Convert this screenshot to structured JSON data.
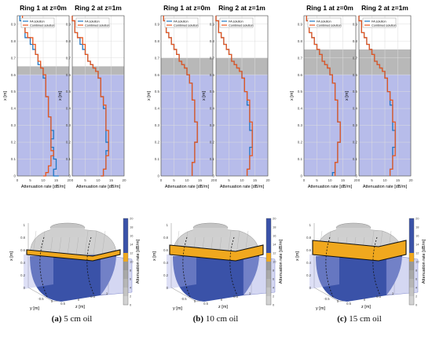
{
  "legend_entries": [
    "FA solution",
    "Combined solution"
  ],
  "y_axis_label": "x [m]",
  "x_axis_label": "Attenuation rate [dB/m]",
  "x_ticks": [
    "0",
    "5",
    "10",
    "15",
    "20"
  ],
  "y_ticks": [
    "0",
    "0.1",
    "0.2",
    "0.3",
    "0.4",
    "0.5",
    "0.6",
    "0.7",
    "0.8",
    "0.9"
  ],
  "colorbar_label": "Attenuation rate [dB/m]",
  "colorbar_ticks": [
    "0",
    "2",
    "4",
    "6",
    "8",
    "10",
    "12",
    "14",
    "16",
    "18",
    "20"
  ],
  "tank_axes": {
    "x_label": "x [m]",
    "y_label": "y [m]",
    "z_label": "z [m]",
    "x_ticks": [
      "0",
      "0.2",
      "0.4",
      "0.6",
      "0.8",
      "1"
    ],
    "y_ticks": [
      "-0.5",
      "0",
      "0.5"
    ],
    "z_ticks": [
      "0",
      "0.5",
      "1"
    ]
  },
  "colors": {
    "fa": "#1f77c4",
    "combined": "#e8571f",
    "water": "#aab0e6",
    "oil": "#b8b8b8",
    "tank_blue": "#3a52a8",
    "tank_oil": "#f0a81e"
  },
  "captions": [
    {
      "label": "(a)",
      "text": "5 cm oil"
    },
    {
      "label": "(b)",
      "text": "10 cm oil"
    },
    {
      "label": "(c)",
      "text": "15 cm oil"
    }
  ],
  "chart_data": [
    {
      "type": "line",
      "title": "Ring 1 at z=0m",
      "oil_cm": 5,
      "water_level": 0.6,
      "oil_top": 0.65,
      "xlim": [
        0,
        20
      ],
      "ylim": [
        0,
        0.95
      ],
      "series": [
        {
          "name": "FA solution",
          "x": [
            1,
            3,
            3,
            5,
            6,
            7,
            8,
            8,
            9,
            10,
            10,
            10,
            11,
            11,
            11,
            12,
            12,
            12,
            12,
            12,
            13,
            13,
            13,
            14,
            14,
            13,
            13,
            14,
            14,
            14,
            15,
            15,
            15,
            14,
            14,
            16
          ],
          "y": [
            0.95,
            0.92,
            0.85,
            0.82,
            0.78,
            0.75,
            0.72,
            0.68,
            0.66,
            0.64,
            0.62,
            0.6,
            0.58,
            0.55,
            0.5,
            0.47,
            0.45,
            0.42,
            0.4,
            0.37,
            0.35,
            0.32,
            0.3,
            0.27,
            0.25,
            0.22,
            0.2,
            0.17,
            0.15,
            0.12,
            0.1,
            0.08,
            0.06,
            0.04,
            0.02,
            0.0
          ]
        },
        {
          "name": "Combined solution",
          "x": [
            2,
            3,
            4,
            6,
            7,
            7,
            8,
            9,
            9,
            10,
            10,
            11,
            11,
            11,
            11,
            12,
            12,
            12,
            12,
            12,
            13,
            13,
            13,
            13,
            13,
            13,
            13,
            13,
            14,
            13,
            13,
            13,
            12,
            12,
            11,
            10
          ],
          "y": [
            0.95,
            0.92,
            0.85,
            0.82,
            0.78,
            0.75,
            0.72,
            0.68,
            0.66,
            0.64,
            0.62,
            0.6,
            0.58,
            0.55,
            0.5,
            0.47,
            0.45,
            0.42,
            0.4,
            0.37,
            0.35,
            0.32,
            0.3,
            0.27,
            0.25,
            0.22,
            0.2,
            0.17,
            0.15,
            0.12,
            0.1,
            0.08,
            0.06,
            0.04,
            0.02,
            0.0
          ]
        }
      ]
    },
    {
      "type": "line",
      "title": "Ring 2 at z=1m",
      "oil_cm": 5,
      "water_level": 0.6,
      "oil_top": 0.65,
      "xlim": [
        0,
        20
      ],
      "ylim": [
        0,
        0.95
      ],
      "series": [
        {
          "name": "FA solution",
          "x": [
            0,
            1,
            2,
            3,
            4,
            5,
            6,
            7,
            8,
            9,
            10,
            10,
            11,
            11,
            11,
            12,
            12,
            12,
            13,
            13,
            13,
            13,
            13,
            13,
            13,
            13,
            14,
            14,
            13,
            13,
            13,
            13,
            13,
            12,
            12,
            11
          ],
          "y": [
            0.95,
            0.92,
            0.85,
            0.82,
            0.78,
            0.75,
            0.72,
            0.68,
            0.66,
            0.64,
            0.62,
            0.6,
            0.58,
            0.55,
            0.5,
            0.47,
            0.45,
            0.42,
            0.4,
            0.37,
            0.35,
            0.32,
            0.3,
            0.27,
            0.25,
            0.22,
            0.2,
            0.17,
            0.15,
            0.12,
            0.1,
            0.08,
            0.06,
            0.04,
            0.02,
            0.0
          ]
        },
        {
          "name": "Combined solution",
          "x": [
            0,
            1,
            2,
            4,
            5,
            5,
            6,
            7,
            8,
            9,
            10,
            10,
            11,
            11,
            11,
            12,
            12,
            13,
            13,
            13,
            13,
            13,
            13,
            14,
            14,
            14,
            14,
            14,
            14,
            13,
            13,
            13,
            13,
            12,
            12,
            11
          ],
          "y": [
            0.95,
            0.92,
            0.85,
            0.82,
            0.78,
            0.75,
            0.72,
            0.68,
            0.66,
            0.64,
            0.62,
            0.6,
            0.58,
            0.55,
            0.5,
            0.47,
            0.45,
            0.42,
            0.4,
            0.37,
            0.35,
            0.32,
            0.3,
            0.27,
            0.25,
            0.22,
            0.2,
            0.17,
            0.15,
            0.12,
            0.1,
            0.08,
            0.06,
            0.04,
            0.02,
            0.0
          ]
        }
      ]
    },
    {
      "type": "line",
      "title": "Ring 1 at z=0m",
      "oil_cm": 10,
      "water_level": 0.6,
      "oil_top": 0.7,
      "xlim": [
        0,
        20
      ],
      "ylim": [
        0,
        0.95
      ],
      "series": [
        {
          "name": "FA solution",
          "x": [
            1,
            2,
            3,
            4,
            5,
            6,
            7,
            8,
            9,
            10,
            10,
            11,
            11,
            12,
            12,
            12,
            13,
            13,
            13,
            13,
            13,
            14,
            14,
            14,
            14,
            14,
            13,
            13,
            13,
            13,
            13,
            12,
            12,
            12,
            12,
            12
          ],
          "y": [
            0.95,
            0.92,
            0.85,
            0.82,
            0.78,
            0.75,
            0.72,
            0.68,
            0.66,
            0.64,
            0.62,
            0.6,
            0.58,
            0.55,
            0.5,
            0.47,
            0.45,
            0.42,
            0.4,
            0.37,
            0.35,
            0.32,
            0.3,
            0.27,
            0.25,
            0.22,
            0.2,
            0.17,
            0.15,
            0.12,
            0.1,
            0.08,
            0.06,
            0.04,
            0.02,
            0.0
          ]
        },
        {
          "name": "Combined solution",
          "x": [
            1,
            2,
            3,
            4,
            5,
            6,
            7,
            8,
            9,
            10,
            10,
            11,
            11,
            12,
            12,
            12,
            13,
            13,
            13,
            13,
            13,
            14,
            14,
            14,
            14,
            14,
            13,
            13,
            13,
            13,
            13,
            12,
            12,
            12,
            12,
            12
          ],
          "y": [
            0.95,
            0.92,
            0.85,
            0.82,
            0.78,
            0.75,
            0.72,
            0.68,
            0.66,
            0.64,
            0.62,
            0.6,
            0.58,
            0.55,
            0.5,
            0.47,
            0.45,
            0.42,
            0.4,
            0.37,
            0.35,
            0.32,
            0.3,
            0.27,
            0.25,
            0.22,
            0.2,
            0.17,
            0.15,
            0.12,
            0.1,
            0.08,
            0.06,
            0.04,
            0.02,
            0.0
          ]
        }
      ]
    },
    {
      "type": "line",
      "title": "Ring 2 at z=1m",
      "oil_cm": 10,
      "water_level": 0.6,
      "oil_top": 0.7,
      "xlim": [
        0,
        20
      ],
      "ylim": [
        0,
        0.95
      ],
      "series": [
        {
          "name": "FA solution",
          "x": [
            0,
            1,
            2,
            3,
            4,
            5,
            6,
            7,
            8,
            9,
            10,
            10,
            11,
            11,
            12,
            12,
            12,
            13,
            13,
            13,
            13,
            13,
            13,
            14,
            14,
            14,
            14,
            13,
            13,
            13,
            13,
            13,
            13,
            12,
            12,
            12
          ],
          "y": [
            0.95,
            0.92,
            0.85,
            0.82,
            0.78,
            0.75,
            0.72,
            0.68,
            0.66,
            0.64,
            0.62,
            0.6,
            0.58,
            0.55,
            0.5,
            0.47,
            0.45,
            0.42,
            0.4,
            0.37,
            0.35,
            0.32,
            0.3,
            0.27,
            0.25,
            0.22,
            0.2,
            0.17,
            0.15,
            0.12,
            0.1,
            0.08,
            0.06,
            0.04,
            0.02,
            0.0
          ]
        },
        {
          "name": "Combined solution",
          "x": [
            0,
            1,
            2,
            3,
            4,
            5,
            6,
            7,
            8,
            9,
            10,
            10,
            11,
            11,
            12,
            12,
            13,
            13,
            13,
            13,
            13,
            14,
            14,
            14,
            14,
            14,
            14,
            14,
            14,
            13,
            13,
            13,
            13,
            12,
            12,
            12
          ],
          "y": [
            0.95,
            0.92,
            0.85,
            0.82,
            0.78,
            0.75,
            0.72,
            0.68,
            0.66,
            0.64,
            0.62,
            0.6,
            0.58,
            0.55,
            0.5,
            0.47,
            0.45,
            0.42,
            0.4,
            0.37,
            0.35,
            0.32,
            0.3,
            0.27,
            0.25,
            0.22,
            0.2,
            0.17,
            0.15,
            0.12,
            0.1,
            0.08,
            0.06,
            0.04,
            0.02,
            0.0
          ]
        }
      ]
    },
    {
      "type": "line",
      "title": "Ring 1 at z=0m",
      "oil_cm": 15,
      "water_level": 0.6,
      "oil_top": 0.75,
      "xlim": [
        0,
        20
      ],
      "ylim": [
        0,
        0.95
      ],
      "series": [
        {
          "name": "FA solution",
          "x": [
            1,
            2,
            3,
            4,
            5,
            6,
            7,
            8,
            9,
            10,
            10,
            11,
            11,
            12,
            12,
            12,
            13,
            13,
            13,
            13,
            13,
            14,
            14,
            14,
            14,
            14,
            13,
            13,
            13,
            13,
            13,
            12,
            12,
            12,
            11,
            11
          ],
          "y": [
            0.95,
            0.92,
            0.85,
            0.82,
            0.78,
            0.75,
            0.72,
            0.68,
            0.66,
            0.64,
            0.62,
            0.6,
            0.58,
            0.55,
            0.5,
            0.47,
            0.45,
            0.42,
            0.4,
            0.37,
            0.35,
            0.32,
            0.3,
            0.27,
            0.25,
            0.22,
            0.2,
            0.17,
            0.15,
            0.12,
            0.1,
            0.08,
            0.06,
            0.04,
            0.02,
            0.0
          ]
        },
        {
          "name": "Combined solution",
          "x": [
            1,
            2,
            3,
            4,
            5,
            6,
            7,
            8,
            9,
            10,
            10,
            11,
            11,
            12,
            12,
            12,
            13,
            13,
            13,
            13,
            13,
            14,
            14,
            14,
            14,
            14,
            13,
            13,
            13,
            13,
            13,
            12,
            12,
            12,
            12,
            12
          ],
          "y": [
            0.95,
            0.92,
            0.85,
            0.82,
            0.78,
            0.75,
            0.72,
            0.68,
            0.66,
            0.64,
            0.62,
            0.6,
            0.58,
            0.55,
            0.5,
            0.47,
            0.45,
            0.42,
            0.4,
            0.37,
            0.35,
            0.32,
            0.3,
            0.27,
            0.25,
            0.22,
            0.2,
            0.17,
            0.15,
            0.12,
            0.1,
            0.08,
            0.06,
            0.04,
            0.02,
            0.0
          ]
        }
      ]
    },
    {
      "type": "line",
      "title": "Ring 2 at z=1m",
      "oil_cm": 15,
      "water_level": 0.6,
      "oil_top": 0.75,
      "xlim": [
        0,
        20
      ],
      "ylim": [
        0,
        0.95
      ],
      "series": [
        {
          "name": "FA solution",
          "x": [
            0,
            1,
            2,
            3,
            4,
            5,
            6,
            7,
            8,
            9,
            10,
            10,
            11,
            11,
            12,
            12,
            12,
            13,
            13,
            13,
            13,
            13,
            13,
            14,
            14,
            14,
            14,
            13,
            13,
            13,
            13,
            13,
            13,
            12,
            12,
            12
          ],
          "y": [
            0.95,
            0.92,
            0.85,
            0.82,
            0.78,
            0.75,
            0.72,
            0.68,
            0.66,
            0.64,
            0.62,
            0.6,
            0.58,
            0.55,
            0.5,
            0.47,
            0.45,
            0.42,
            0.4,
            0.37,
            0.35,
            0.32,
            0.3,
            0.27,
            0.25,
            0.22,
            0.2,
            0.17,
            0.15,
            0.12,
            0.1,
            0.08,
            0.06,
            0.04,
            0.02,
            0.0
          ]
        },
        {
          "name": "Combined solution",
          "x": [
            0,
            1,
            2,
            3,
            4,
            5,
            6,
            7,
            8,
            9,
            10,
            10,
            11,
            11,
            12,
            12,
            13,
            13,
            13,
            13,
            13,
            14,
            14,
            14,
            14,
            14,
            14,
            14,
            14,
            13,
            13,
            13,
            13,
            12,
            12,
            12
          ],
          "y": [
            0.95,
            0.92,
            0.85,
            0.82,
            0.78,
            0.75,
            0.72,
            0.68,
            0.66,
            0.64,
            0.62,
            0.6,
            0.58,
            0.55,
            0.5,
            0.47,
            0.45,
            0.42,
            0.4,
            0.37,
            0.35,
            0.32,
            0.3,
            0.27,
            0.25,
            0.22,
            0.2,
            0.17,
            0.15,
            0.12,
            0.1,
            0.08,
            0.06,
            0.04,
            0.02,
            0.0
          ]
        }
      ]
    }
  ]
}
